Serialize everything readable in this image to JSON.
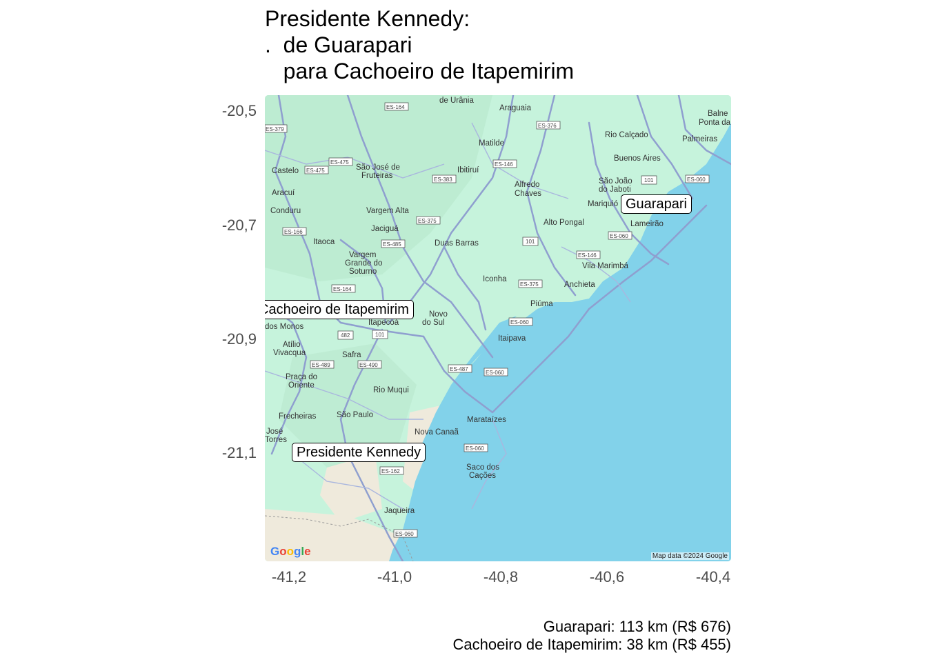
{
  "title": "Presidente Kennedy:\n.  de Guarapari\n   para Cachoeiro de Itapemirim",
  "axes": {
    "y_ticks": [
      "-20,5",
      "-20,7",
      "-20,9",
      "-21,1"
    ],
    "x_ticks": [
      "-41,2",
      "-41,0",
      "-40,8",
      "-40,6",
      "-40,4"
    ]
  },
  "markers": {
    "guarapari": "Guarapari",
    "cachoeiro": "Cachoeiro de Itapemirim",
    "kennedy": "Presidente Kennedy"
  },
  "caption": {
    "line1": "Guarapari: 113 km (R$ 676)",
    "line2": "Cachoeiro de Itapemirim: 38 km (R$ 455)"
  },
  "basemap": {
    "logo": "Google",
    "attribution": "Map data ©2024 Google",
    "land_color": "#c6f3dc",
    "water_color": "#82d2ea",
    "road_color": "#8f9fcf",
    "places": [
      "de Urânia",
      "Araguaia",
      "Matilde",
      "Rio Calçado",
      "Balneário Ponta da",
      "Palmeiras",
      "Castelo",
      "São José de Fruteiras",
      "Ibitiruí",
      "Buenos Aires",
      "Aracuí",
      "Alfredo Chaves",
      "São João do Jaboti",
      "Conduru",
      "Vargem Alta",
      "Mariquió",
      "Jaciguá",
      "Alto Pongal",
      "Lameirão",
      "Itaoca",
      "Duas Barras",
      "Vargem Grande do Soturno",
      "Vila Marimbá",
      "Iconha",
      "Anchieta",
      "Piúma",
      "Novo do Sul",
      "Itapecoá",
      "dos Monos",
      "Itaipava",
      "Atílio Vivacqua",
      "Safra",
      "Praça do Oriente",
      "Rio Muqui",
      "Frecheiras",
      "São Paulo",
      "Marataízes",
      "José Torres",
      "Nova Canaã",
      "Saco dos Cações",
      "Jaqueira"
    ],
    "shields": [
      "ES-164",
      "ES-376",
      "ES-379",
      "ES-475",
      "ES-146",
      "ES-383",
      "ES-060",
      "101",
      "ES-375",
      "ES-166",
      "ES-485",
      "ES-482",
      "ES-489",
      "ES-490",
      "ES-487",
      "ES-162"
    ]
  }
}
